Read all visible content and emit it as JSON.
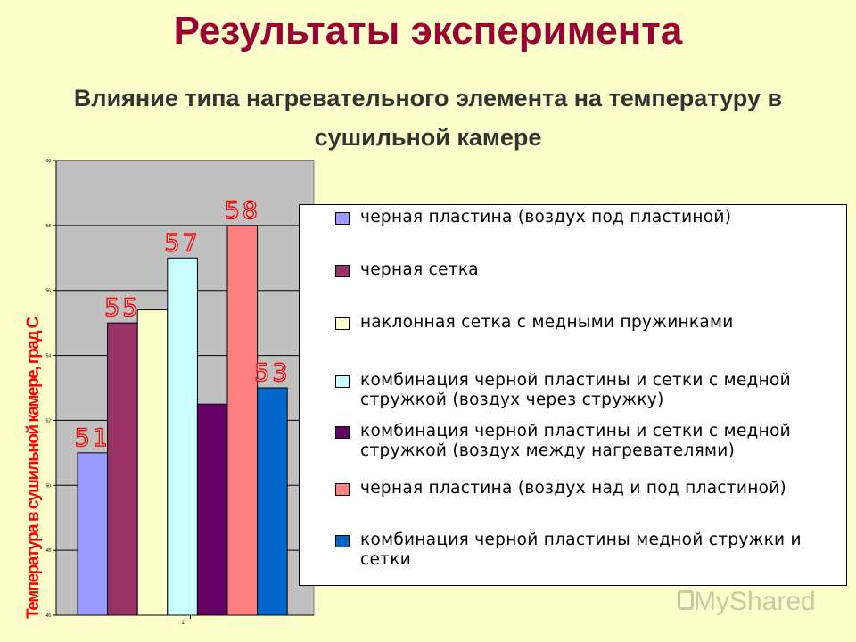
{
  "title": "Результаты эксперимента",
  "subtitle": "Влияние типа нагревательного элемента на температуру в сушильной камере",
  "watermark": "MyShared",
  "chart_data": {
    "type": "bar",
    "categories": [
      "1"
    ],
    "ylabel": "Температура в сушильной камере, град С",
    "ylim": [
      46,
      60
    ],
    "yticks": [
      46,
      48,
      50,
      52,
      54,
      56,
      58,
      60
    ],
    "grid": true,
    "legend_position": "right",
    "series": [
      {
        "name": "черная пластина (воздух под пластиной)",
        "value": 51,
        "label": "51",
        "color": "#9999ff"
      },
      {
        "name": "черная сетка",
        "value": 55,
        "label": "55",
        "color": "#993366"
      },
      {
        "name": "наклонная сетка с медными пружинками",
        "value": 55.4,
        "label": "",
        "color": "#ffffcc"
      },
      {
        "name": "комбинация черной пластины и сетки с медной стружкой (воздух через стружку)",
        "value": 57,
        "label": "57",
        "color": "#ccffff"
      },
      {
        "name": "комбинация черной пластины и сетки с медной стружкой (воздух между нагревателями)",
        "value": 52.5,
        "label": "",
        "color": "#660066"
      },
      {
        "name": "черная пластина (воздух над и под пластиной)",
        "value": 58,
        "label": "58",
        "color": "#ff8080"
      },
      {
        "name": "комбинация черной пластины медной стружки и сетки",
        "value": 53,
        "label": "53",
        "color": "#0066cc"
      }
    ]
  }
}
